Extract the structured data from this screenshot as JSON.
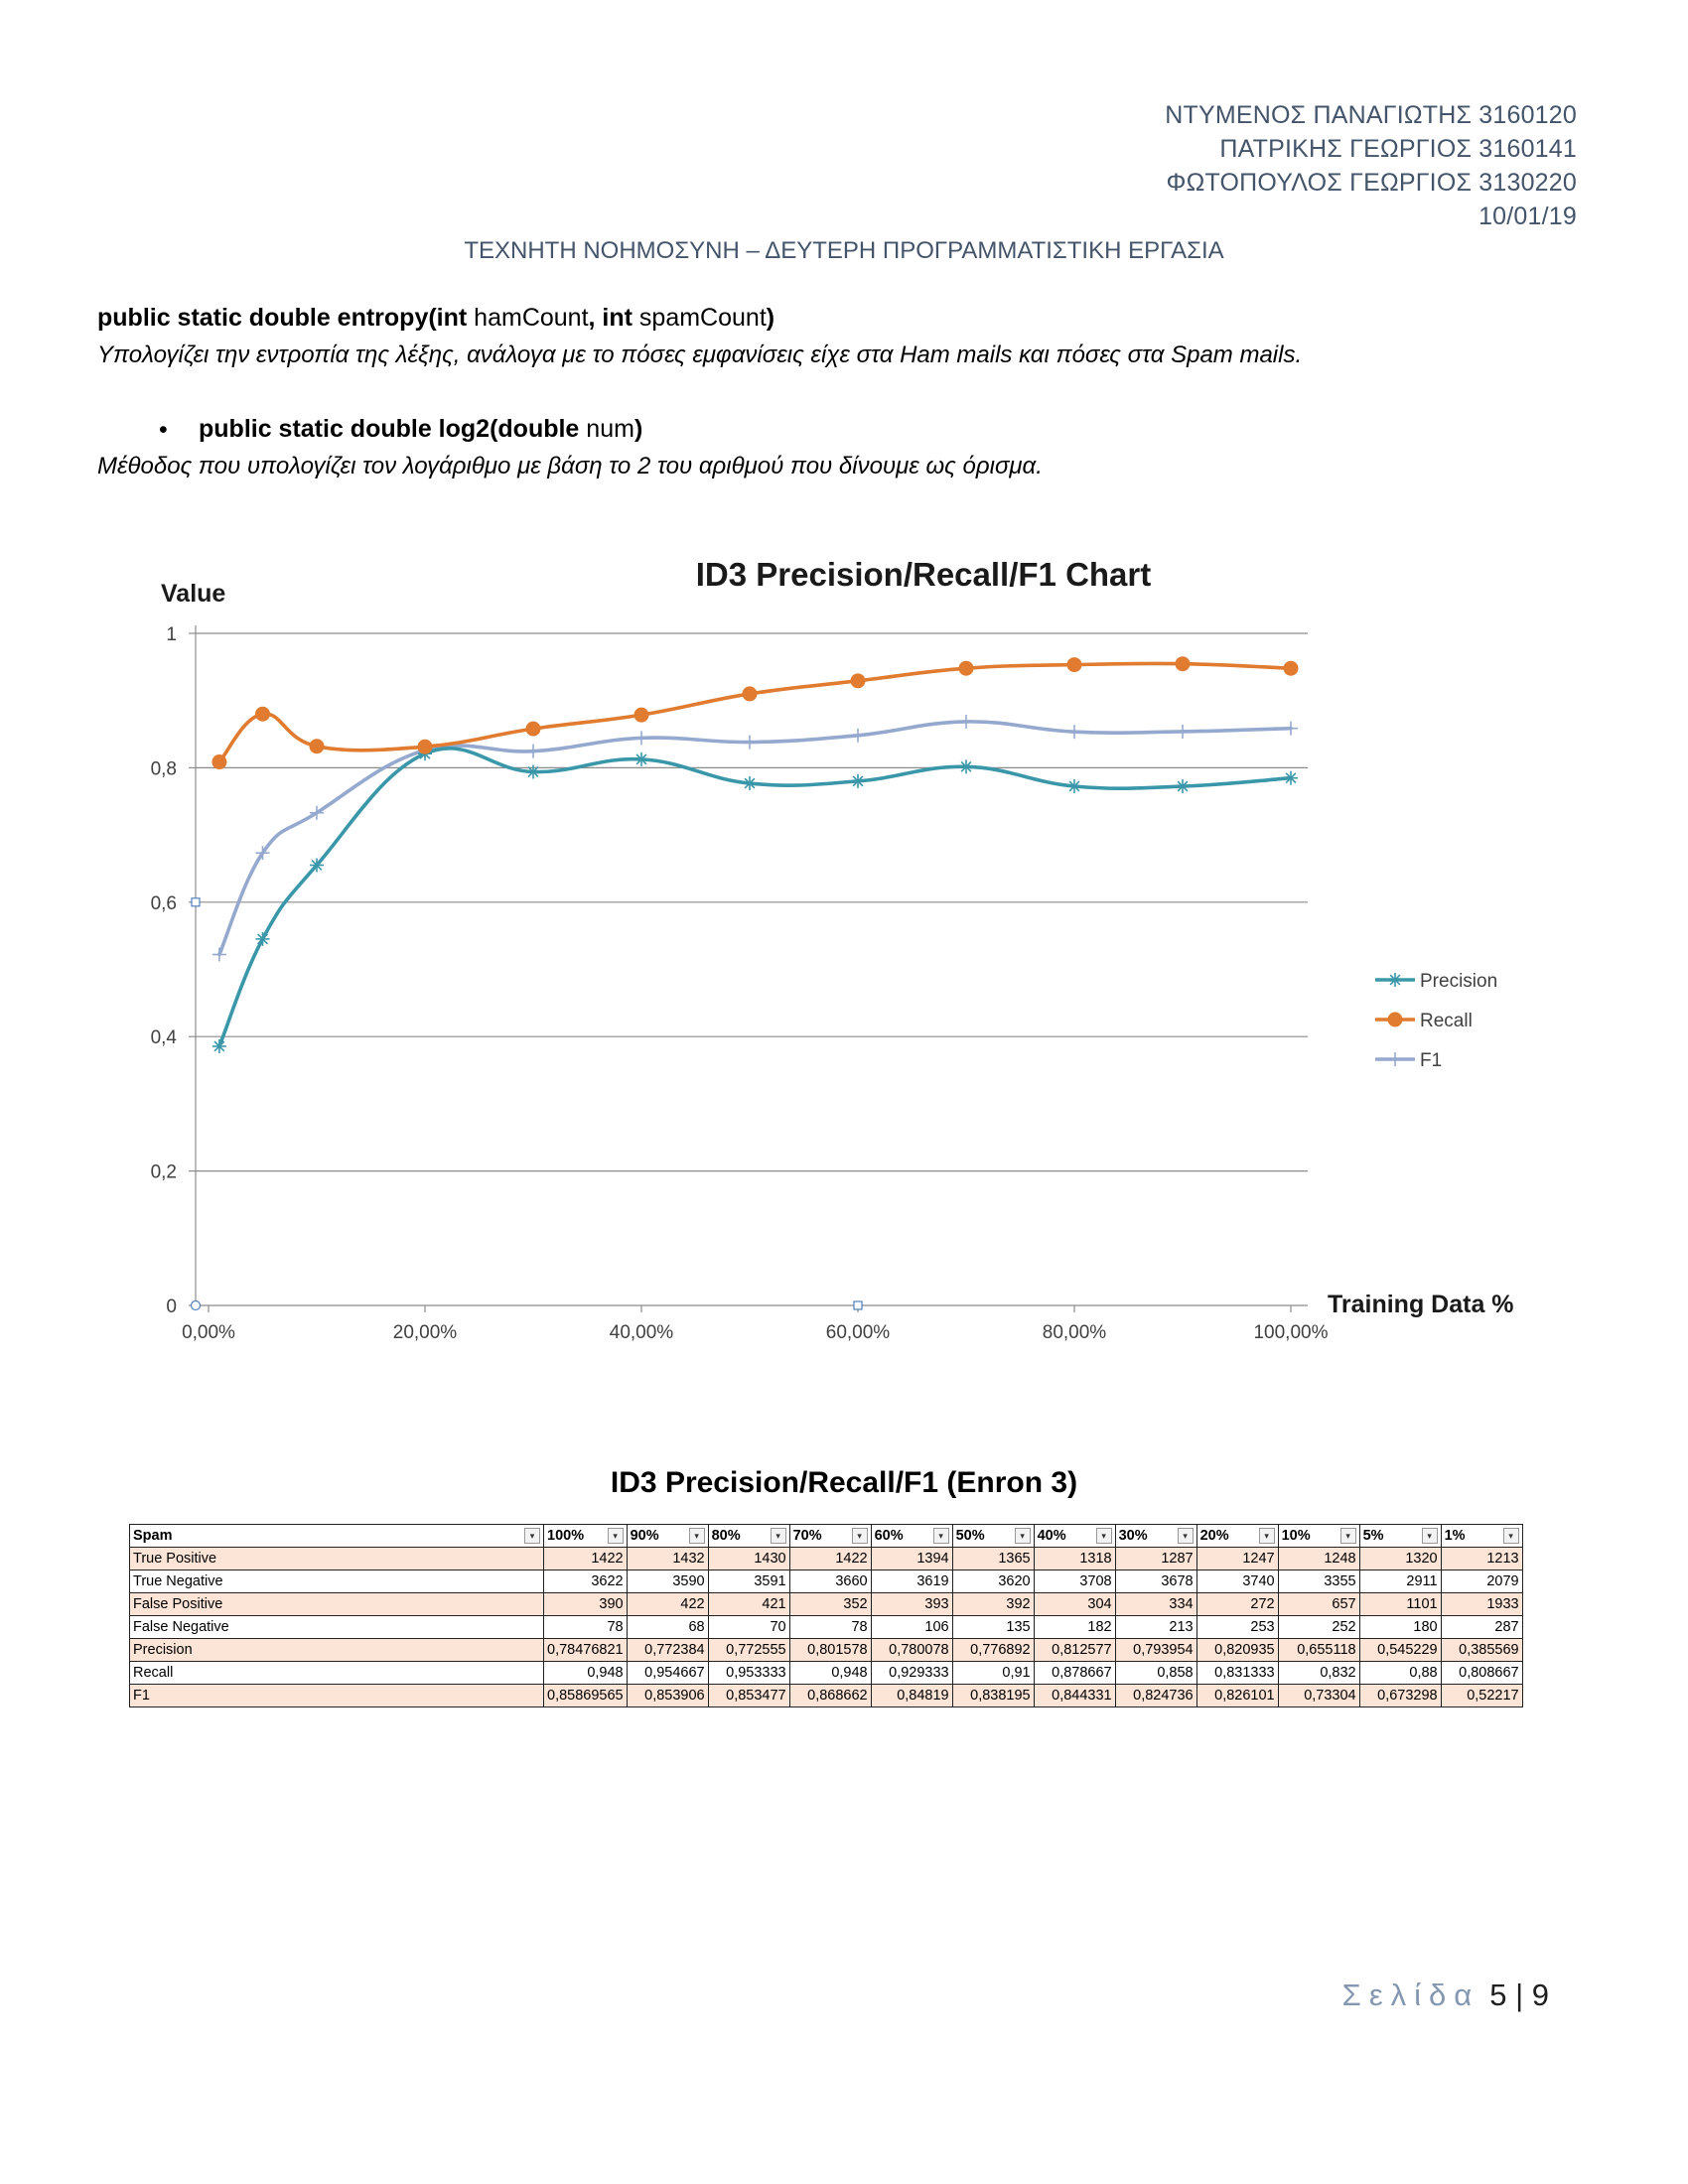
{
  "header": {
    "lines": [
      "ΝΤΥΜΕΝΟΣ ΠΑΝΑΓΙΩΤΗΣ 3160120",
      "ΠΑΤΡΙΚΗΣ ΓΕΩΡΓΙΟΣ 3160141",
      "ΦΩΤΟΠΟΥΛΟΣ ΓΕΩΡΓΙΟΣ 3130220",
      "10/01/19"
    ],
    "title": "ΤΕΧΝΗΤΗ ΝΟΗΜΟΣΥΝΗ – ΔΕΥΤΕΡΗ ΠΡΟΓΡΑΜΜΑΤΙΣΤΙΚΗ ΕΡΓΑΣΙΑ"
  },
  "methods": [
    {
      "sig_a": "public static double entropy(int",
      "sig_b": " hamCount",
      "sig_c": ", int",
      "sig_d": " spamCount",
      "sig_e": ")",
      "description": "Υπολογίζει την εντροπία της λέξης, ανάλογα με το πόσες εμφανίσεις είχε στα Ham mails και πόσες στα Spam mails."
    },
    {
      "bullet": "•",
      "sig_a": "public static double log2(double",
      "sig_b": " num",
      "sig_e": ")",
      "description": "Μέθοδος που υπολογίζει τον λογάριθμο με βάση το 2 του αριθμού που δίνουμε ως όρισμα."
    }
  ],
  "chart_data": {
    "type": "line",
    "title": "ID3 Precision/Recall/F1 Chart",
    "ylabel": "Value",
    "xlabel": "Training Data %",
    "x": [
      1,
      5,
      10,
      20,
      30,
      40,
      50,
      60,
      70,
      80,
      90,
      100
    ],
    "xlim": [
      0,
      100
    ],
    "ylim": [
      0,
      1
    ],
    "xticks": [
      "0,00%",
      "20,00%",
      "40,00%",
      "60,00%",
      "80,00%",
      "100,00%"
    ],
    "yticks": [
      "0",
      "0,2",
      "0,4",
      "0,6",
      "0,8",
      "1"
    ],
    "legend_position": "right",
    "series": [
      {
        "name": "Precision",
        "color": "#3a97a9",
        "marker": "star",
        "values": [
          0.385569,
          0.545229,
          0.655118,
          0.820935,
          0.793954,
          0.812577,
          0.776892,
          0.780078,
          0.801578,
          0.772555,
          0.772384,
          0.78476821
        ]
      },
      {
        "name": "Recall",
        "color": "#e07b2f",
        "marker": "circle",
        "values": [
          0.808667,
          0.88,
          0.832,
          0.831333,
          0.858,
          0.878667,
          0.91,
          0.929333,
          0.948,
          0.953333,
          0.954667,
          0.948
        ]
      },
      {
        "name": "F1",
        "color": "#95a9cf",
        "marker": "plus",
        "values": [
          0.52217,
          0.673298,
          0.73304,
          0.826101,
          0.824736,
          0.844331,
          0.838195,
          0.84819,
          0.868662,
          0.853477,
          0.853906,
          0.85869565
        ]
      }
    ]
  },
  "table": {
    "title": "ID3 Precision/Recall/F1 (Enron 3)",
    "headers": [
      "Spam",
      "100%",
      "90%",
      "80%",
      "70%",
      "60%",
      "50%",
      "40%",
      "30%",
      "20%",
      "10%",
      "5%",
      "1%"
    ],
    "dropdown_glyph": "▾",
    "rows": [
      [
        "True Positive",
        "1422",
        "1432",
        "1430",
        "1422",
        "1394",
        "1365",
        "1318",
        "1287",
        "1247",
        "1248",
        "1320",
        "1213"
      ],
      [
        "True Negative",
        "3622",
        "3590",
        "3591",
        "3660",
        "3619",
        "3620",
        "3708",
        "3678",
        "3740",
        "3355",
        "2911",
        "2079"
      ],
      [
        "False Positive",
        "390",
        "422",
        "421",
        "352",
        "393",
        "392",
        "304",
        "334",
        "272",
        "657",
        "1101",
        "1933"
      ],
      [
        "False Negative",
        "78",
        "68",
        "70",
        "78",
        "106",
        "135",
        "182",
        "213",
        "253",
        "252",
        "180",
        "287"
      ],
      [
        "Precision",
        "0,78476821",
        "0,772384",
        "0,772555",
        "0,801578",
        "0,780078",
        "0,776892",
        "0,812577",
        "0,793954",
        "0,820935",
        "0,655118",
        "0,545229",
        "0,385569"
      ],
      [
        "Recall",
        "0,948",
        "0,954667",
        "0,953333",
        "0,948",
        "0,929333",
        "0,91",
        "0,878667",
        "0,858",
        "0,831333",
        "0,832",
        "0,88",
        "0,808667"
      ],
      [
        "F1",
        "0,85869565",
        "0,853906",
        "0,853477",
        "0,868662",
        "0,84819",
        "0,838195",
        "0,844331",
        "0,824736",
        "0,826101",
        "0,73304",
        "0,673298",
        "0,52217"
      ]
    ]
  },
  "footer": {
    "label": "Σελίδα",
    "page": "5 | 9"
  }
}
